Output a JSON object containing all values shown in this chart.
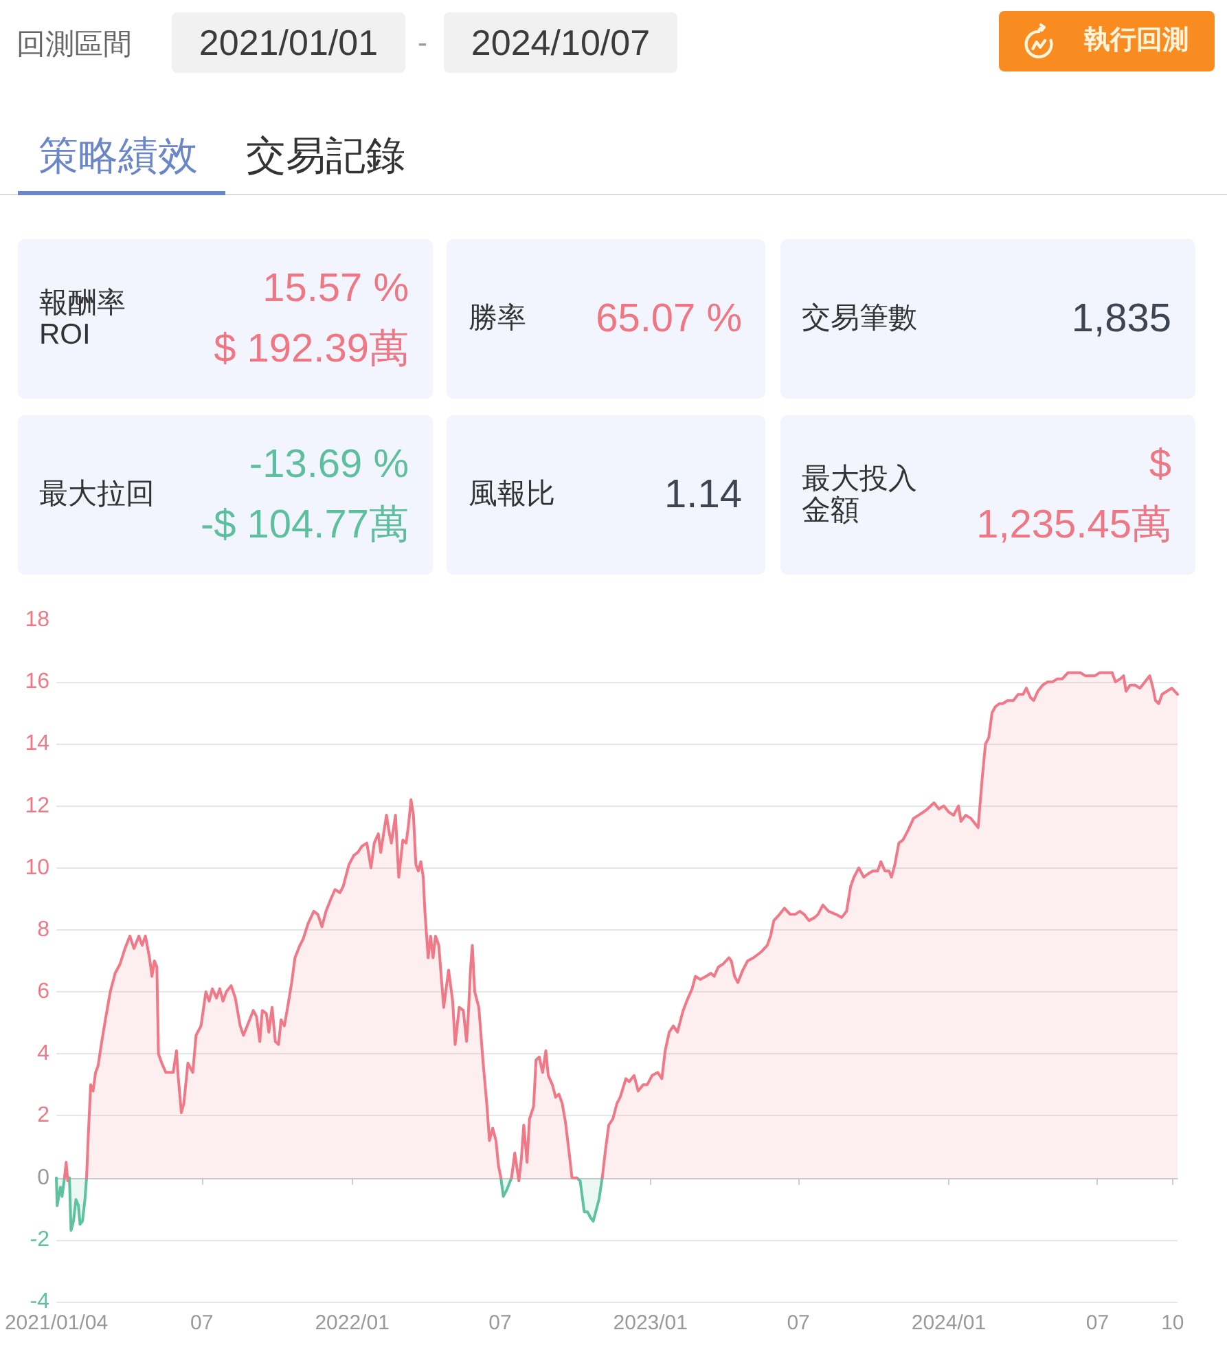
{
  "chart_data": [
    {
      "type": "other",
      "annotations": [
        "回測區間",
        "2021/01/01",
        "-",
        "2024/10/07",
        "執行回測",
        "策略績效",
        "交易記錄",
        "報酬率 ROI",
        "15.57 %",
        "$ 192.39萬",
        "勝率",
        "65.07 %",
        "交易筆數",
        "1,835",
        "最大拉回",
        "-13.69 %",
        "-$ 104.77萬",
        "風報比",
        "1.14",
        "最大投入金額",
        "$ 1,235.45萬"
      ]
    },
    {
      "type": "area",
      "series": [
        {
          "color": "#5ec1a0",
          "x": [
            "2021-01-04",
            "2021-01-05",
            "2021-01-09",
            "2021-01-11",
            "2021-01-14",
            "2021-01-16",
            "2021-01-18",
            "2021-01-20",
            "2021-01-22",
            "2021-01-25",
            "2021-01-28",
            "2021-01-31",
            "2021-02-02",
            "2021-02-05",
            "2021-02-08",
            "2021-02-10",
            "2021-02-12",
            "2022-07-02",
            "2022-07-05",
            "2022-07-09",
            "2022-07-15",
            "2022-07-19",
            "2022-10-03",
            "2022-10-07",
            "2022-10-12",
            "2022-10-16",
            "2022-10-20",
            "2022-10-23",
            "2022-10-26",
            "2022-10-30",
            "2022-11-03"
          ],
          "values": [
            0,
            -0.9,
            -0.3,
            -0.6,
            0,
            null,
            -0.1,
            0,
            -1.7,
            -1.4,
            -0.7,
            -0.9,
            -1.5,
            -1.4,
            -0.7,
            0,
            null,
            0,
            -0.6,
            -0.4,
            0,
            null,
            0,
            -0.1,
            -1.1,
            -1.1,
            -1.3,
            -1.4,
            -1.1,
            -0.7,
            0
          ]
        },
        {
          "color": "#f07887",
          "x": [
            "2021-01-14",
            "2021-01-16",
            "2021-01-18",
            "2021-01-20",
            "2021-02-10",
            "2021-02-12",
            "2021-02-15",
            "2021-02-18",
            "2021-02-21",
            "2021-02-24",
            "2021-02-28",
            "2021-03-05",
            "2021-03-11",
            "2021-03-17",
            "2021-03-23",
            "2021-03-29",
            "2021-04-04",
            "2021-04-09",
            "2021-04-15",
            "2021-04-19",
            "2021-04-23",
            "2021-04-28",
            "2021-05-01",
            "2021-05-04",
            "2021-05-07",
            "2021-05-09",
            "2021-05-13",
            "2021-05-18",
            "2021-05-22",
            "2021-05-27",
            "2021-05-31",
            "2021-06-02",
            "2021-06-06",
            "2021-06-09",
            "2021-06-14",
            "2021-06-20",
            "2021-06-24",
            "2021-06-30",
            "2021-07-06",
            "2021-07-10",
            "2021-07-14",
            "2021-07-19",
            "2021-07-23",
            "2021-07-27",
            "2021-07-31",
            "2021-08-06",
            "2021-08-11",
            "2021-08-17",
            "2021-08-21",
            "2021-08-27",
            "2021-09-02",
            "2021-09-06",
            "2021-09-10",
            "2021-09-13",
            "2021-09-18",
            "2021-09-21",
            "2021-09-25",
            "2021-09-29",
            "2021-10-03",
            "2021-10-06",
            "2021-10-10",
            "2021-10-14",
            "2021-10-19",
            "2021-10-23",
            "2021-10-29",
            "2021-11-02",
            "2021-11-08",
            "2021-11-15",
            "2021-11-20",
            "2021-11-25",
            "2021-11-30",
            "2021-12-06",
            "2021-12-11",
            "2021-12-17",
            "2021-12-21",
            "2021-12-28",
            "2022-01-03",
            "2022-01-08",
            "2022-01-13",
            "2022-01-19",
            "2022-01-24",
            "2022-01-28",
            "2022-02-02",
            "2022-02-05",
            "2022-02-09",
            "2022-02-12",
            "2022-02-15",
            "2022-02-18",
            "2022-02-23",
            "2022-02-27",
            "2022-03-04",
            "2022-03-08",
            "2022-03-11",
            "2022-03-14",
            "2022-03-17",
            "2022-03-20",
            "2022-03-23",
            "2022-03-26",
            "2022-03-29",
            "2022-03-31",
            "2022-04-04",
            "2022-04-07",
            "2022-04-10",
            "2022-04-13",
            "2022-04-17",
            "2022-04-20",
            "2022-04-23",
            "2022-04-29",
            "2022-05-04",
            "2022-05-07",
            "2022-05-12",
            "2022-05-17",
            "2022-05-21",
            "2022-05-23",
            "2022-05-26",
            "2022-05-28",
            "2022-05-31",
            "2022-06-05",
            "2022-06-10",
            "2022-06-15",
            "2022-06-18",
            "2022-06-22",
            "2022-06-26",
            "2022-06-29",
            "2022-07-02",
            "2022-07-05",
            "2022-07-15",
            "2022-07-19",
            "2022-07-24",
            "2022-07-27",
            "2022-07-30",
            "2022-08-03",
            "2022-08-06",
            "2022-08-11",
            "2022-08-14",
            "2022-08-18",
            "2022-08-22",
            "2022-08-26",
            "2022-08-29",
            "2022-09-03",
            "2022-09-07",
            "2022-09-11",
            "2022-09-15",
            "2022-09-19",
            "2022-09-24",
            "2022-09-27",
            "2022-10-03",
            "2022-10-07",
            "2022-11-03",
            "2022-11-07",
            "2022-11-11",
            "2022-11-16",
            "2022-11-21",
            "2022-11-25",
            "2022-12-02",
            "2022-12-06",
            "2022-12-12",
            "2022-12-17",
            "2022-12-23",
            "2022-12-28",
            "2023-01-03",
            "2023-01-10",
            "2023-01-15",
            "2023-01-19",
            "2023-01-24",
            "2023-01-29",
            "2023-02-03",
            "2023-02-10",
            "2023-02-16",
            "2023-02-21",
            "2023-02-25",
            "2023-03-03",
            "2023-03-10",
            "2023-03-16",
            "2023-03-20",
            "2023-03-25",
            "2023-03-31",
            "2023-04-07",
            "2023-04-10",
            "2023-04-14",
            "2023-04-18",
            "2023-04-24",
            "2023-04-30",
            "2023-05-07",
            "2023-05-12",
            "2023-05-17",
            "2023-05-24",
            "2023-05-28",
            "2023-06-01",
            "2023-06-08",
            "2023-06-14",
            "2023-06-21",
            "2023-06-27",
            "2023-07-03",
            "2023-07-08",
            "2023-07-14",
            "2023-07-21",
            "2023-07-25",
            "2023-07-31",
            "2023-08-07",
            "2023-08-16",
            "2023-08-23",
            "2023-08-29",
            "2023-09-03",
            "2023-09-07",
            "2023-09-13",
            "2023-09-19",
            "2023-09-24",
            "2023-09-30",
            "2023-10-06",
            "2023-10-10",
            "2023-10-15",
            "2023-10-20",
            "2023-10-23",
            "2023-10-27",
            "2023-11-01",
            "2023-11-06",
            "2023-11-12",
            "2023-11-19",
            "2023-11-25",
            "2023-12-01",
            "2023-12-06",
            "2023-12-14",
            "2023-12-20",
            "2023-12-26",
            "2024-01-01",
            "2024-01-07",
            "2024-01-13",
            "2024-01-16",
            "2024-01-22",
            "2024-01-28",
            "2024-02-03",
            "2024-02-06",
            "2024-02-11",
            "2024-02-15",
            "2024-02-19",
            "2024-02-23",
            "2024-02-27",
            "2024-03-03",
            "2024-03-07",
            "2024-03-13",
            "2024-03-20",
            "2024-03-26",
            "2024-04-01",
            "2024-04-05",
            "2024-04-10",
            "2024-04-14",
            "2024-04-19",
            "2024-04-25",
            "2024-05-01",
            "2024-05-07",
            "2024-05-13",
            "2024-05-19",
            "2024-05-26",
            "2024-06-01",
            "2024-06-10",
            "2024-06-16",
            "2024-06-22",
            "2024-06-28",
            "2024-07-04",
            "2024-07-10",
            "2024-07-19",
            "2024-07-23",
            "2024-07-29",
            "2024-08-02",
            "2024-08-05",
            "2024-08-10",
            "2024-08-16",
            "2024-08-22",
            "2024-08-28",
            "2024-09-03",
            "2024-09-07",
            "2024-09-10",
            "2024-09-14",
            "2024-09-18",
            "2024-09-24",
            "2024-09-30",
            "2024-10-07"
          ],
          "values": [
            0,
            0.5,
            -0.1,
            null,
            0,
            1.3,
            3.0,
            2.8,
            3.4,
            3.6,
            4.3,
            5.1,
            6.0,
            6.6,
            6.9,
            7.4,
            7.8,
            7.4,
            7.8,
            7.5,
            7.8,
            7.1,
            6.5,
            7.0,
            6.8,
            4.0,
            3.7,
            3.4,
            3.4,
            3.4,
            4.1,
            3.3,
            2.1,
            2.4,
            3.7,
            3.4,
            4.6,
            4.9,
            6.0,
            5.7,
            6.1,
            5.8,
            6.1,
            5.7,
            6.0,
            6.2,
            5.8,
            4.9,
            4.6,
            5.0,
            5.4,
            5.2,
            4.4,
            5.4,
            5.3,
            4.7,
            5.5,
            4.4,
            4.3,
            5.1,
            4.9,
            5.5,
            6.3,
            7.1,
            7.5,
            7.7,
            8.2,
            8.6,
            8.5,
            8.1,
            8.6,
            9.0,
            9.3,
            9.2,
            9.4,
            10.1,
            10.4,
            10.5,
            10.7,
            10.8,
            10.0,
            10.8,
            11.1,
            10.5,
            11.2,
            11.7,
            11.2,
            10.8,
            11.7,
            9.7,
            10.9,
            10.8,
            11.4,
            12.2,
            11.7,
            10.1,
            9.9,
            10.2,
            9.7,
            8.6,
            7.1,
            7.8,
            7.1,
            7.8,
            7.5,
            6.5,
            5.5,
            6.7,
            5.7,
            4.3,
            5.5,
            5.4,
            4.4,
            5.2,
            6.8,
            7.5,
            6.0,
            5.5,
            3.8,
            2.3,
            1.2,
            1.6,
            1.2,
            0.4,
            0,
            null,
            0,
            0.8,
            -0.1,
            0.6,
            1.7,
            0.5,
            1.9,
            2.3,
            3.8,
            3.9,
            3.4,
            4.1,
            3.3,
            3.0,
            2.6,
            2.7,
            2.4,
            1.8,
            0.7,
            0,
            0,
            null,
            0,
            0.9,
            1.7,
            1.9,
            2.4,
            2.6,
            3.2,
            3.1,
            3.3,
            2.8,
            3.0,
            3.0,
            3.3,
            3.4,
            3.2,
            4.1,
            4.7,
            4.9,
            4.7,
            5.4,
            5.8,
            6.1,
            6.5,
            6.4,
            6.5,
            6.6,
            6.5,
            6.8,
            6.9,
            7.1,
            7.0,
            6.5,
            6.3,
            6.7,
            7.0,
            7.1,
            7.2,
            7.3,
            7.5,
            7.8,
            8.3,
            8.5,
            8.7,
            8.5,
            8.5,
            8.6,
            8.5,
            8.3,
            8.4,
            8.5,
            8.8,
            8.6,
            8.5,
            8.4,
            8.6,
            9.4,
            9.7,
            10.0,
            9.7,
            9.8,
            9.9,
            9.9,
            10.2,
            9.9,
            9.9,
            9.7,
            10.1,
            10.8,
            10.9,
            11.2,
            11.6,
            11.7,
            11.8,
            11.9,
            12.1,
            11.9,
            12.0,
            11.8,
            11.7,
            12.0,
            11.5,
            11.7,
            11.6,
            11.4,
            11.3,
            12.9,
            14.0,
            14.2,
            15.0,
            15.2,
            15.3,
            15.3,
            15.4,
            15.4,
            15.6,
            15.6,
            15.8,
            15.5,
            15.4,
            15.7,
            15.9,
            16.0,
            16.0,
            16.1,
            16.1,
            16.3,
            16.3,
            16.3,
            16.2,
            16.2,
            16.2,
            16.3,
            16.3,
            16.3,
            16.0,
            16.1,
            16.2,
            15.7,
            15.9,
            15.9,
            15.8,
            16.0,
            16.2,
            15.8,
            15.4,
            15.3,
            15.6,
            15.7,
            15.8,
            15.6
          ]
        }
      ],
      "xlim": [
        "2021-01-04",
        "2024-10-07"
      ],
      "xticks": [
        {
          "value": "2021-01-04",
          "label": "2021/01/04"
        },
        {
          "value": "2021-07-01",
          "label": "07"
        },
        {
          "value": "2022-01-01",
          "label": "2022/01"
        },
        {
          "value": "2022-07-01",
          "label": "07"
        },
        {
          "value": "2023-01-01",
          "label": "2023/01"
        },
        {
          "value": "2023-07-01",
          "label": "07"
        },
        {
          "value": "2024-01-01",
          "label": "2024/01"
        },
        {
          "value": "2024-07-01",
          "label": "07"
        },
        {
          "value": "2024-10-01",
          "label": "10"
        }
      ],
      "ylim": [
        -4,
        18
      ],
      "yticks": [
        -4,
        -2,
        0,
        2,
        4,
        6,
        8,
        10,
        12,
        14,
        16,
        18
      ],
      "grid": "y"
    }
  ]
}
